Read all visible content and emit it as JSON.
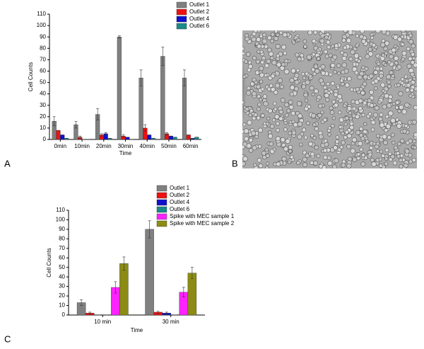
{
  "panel_labels": [
    "A",
    "B",
    "C"
  ],
  "chart_data": [
    {
      "type": "bar",
      "x_label": "Time",
      "y_label": "Cell Counts",
      "categories": [
        "0min",
        "10min",
        "20min",
        "30min",
        "40min",
        "50min",
        "60min"
      ],
      "ylim": [
        0,
        110
      ],
      "yticks": [
        0,
        10,
        20,
        30,
        40,
        50,
        60,
        70,
        80,
        90,
        100,
        110
      ],
      "series": [
        {
          "name": "Outlet 1",
          "color": "#808080",
          "values": [
            16,
            13,
            22,
            90,
            54,
            73,
            54
          ],
          "errors": [
            4,
            3,
            5,
            1,
            7,
            8,
            7
          ]
        },
        {
          "name": "Outlet 2",
          "color": "#ee1111",
          "values": [
            8,
            2,
            4,
            3,
            10,
            5,
            4
          ],
          "errors": [
            0,
            1,
            1,
            1,
            3,
            1,
            0
          ]
        },
        {
          "name": "Outlet 4",
          "color": "#1010cc",
          "values": [
            4,
            0,
            5,
            2,
            4,
            3,
            1
          ],
          "errors": [
            0,
            0,
            1,
            0,
            0,
            0,
            0
          ]
        },
        {
          "name": "Outlet 6",
          "color": "#1a8a8a",
          "values": [
            1,
            0,
            1,
            0,
            1,
            2,
            2
          ],
          "errors": [
            0,
            0,
            0,
            0,
            0,
            0,
            0
          ]
        }
      ]
    },
    {
      "type": "bar",
      "x_label": "Time",
      "y_label": "Cell Counts",
      "categories": [
        "10 min",
        "30 min"
      ],
      "ylim": [
        0,
        110
      ],
      "yticks": [
        0,
        10,
        20,
        30,
        40,
        50,
        60,
        70,
        80,
        90,
        100,
        110
      ],
      "series": [
        {
          "name": "Outlet 1",
          "color": "#808080",
          "values": [
            13,
            90
          ],
          "errors": [
            3,
            9
          ]
        },
        {
          "name": "Outlet 2",
          "color": "#ee1111",
          "values": [
            2,
            3
          ],
          "errors": [
            1,
            1
          ]
        },
        {
          "name": "Outlet 4",
          "color": "#1010cc",
          "values": [
            0,
            2
          ],
          "errors": [
            0,
            1
          ]
        },
        {
          "name": "Outlet 6",
          "color": "#1a8a8a",
          "values": [
            0,
            0
          ],
          "errors": [
            0,
            0
          ]
        },
        {
          "name": "Spike with MEC sample 1",
          "color": "#ff22ff",
          "values": [
            29,
            24
          ],
          "errors": [
            6,
            5
          ]
        },
        {
          "name": "Spike with MEC sample 2",
          "color": "#8c8c14",
          "values": [
            54,
            44
          ],
          "errors": [
            7,
            6
          ]
        }
      ]
    }
  ]
}
